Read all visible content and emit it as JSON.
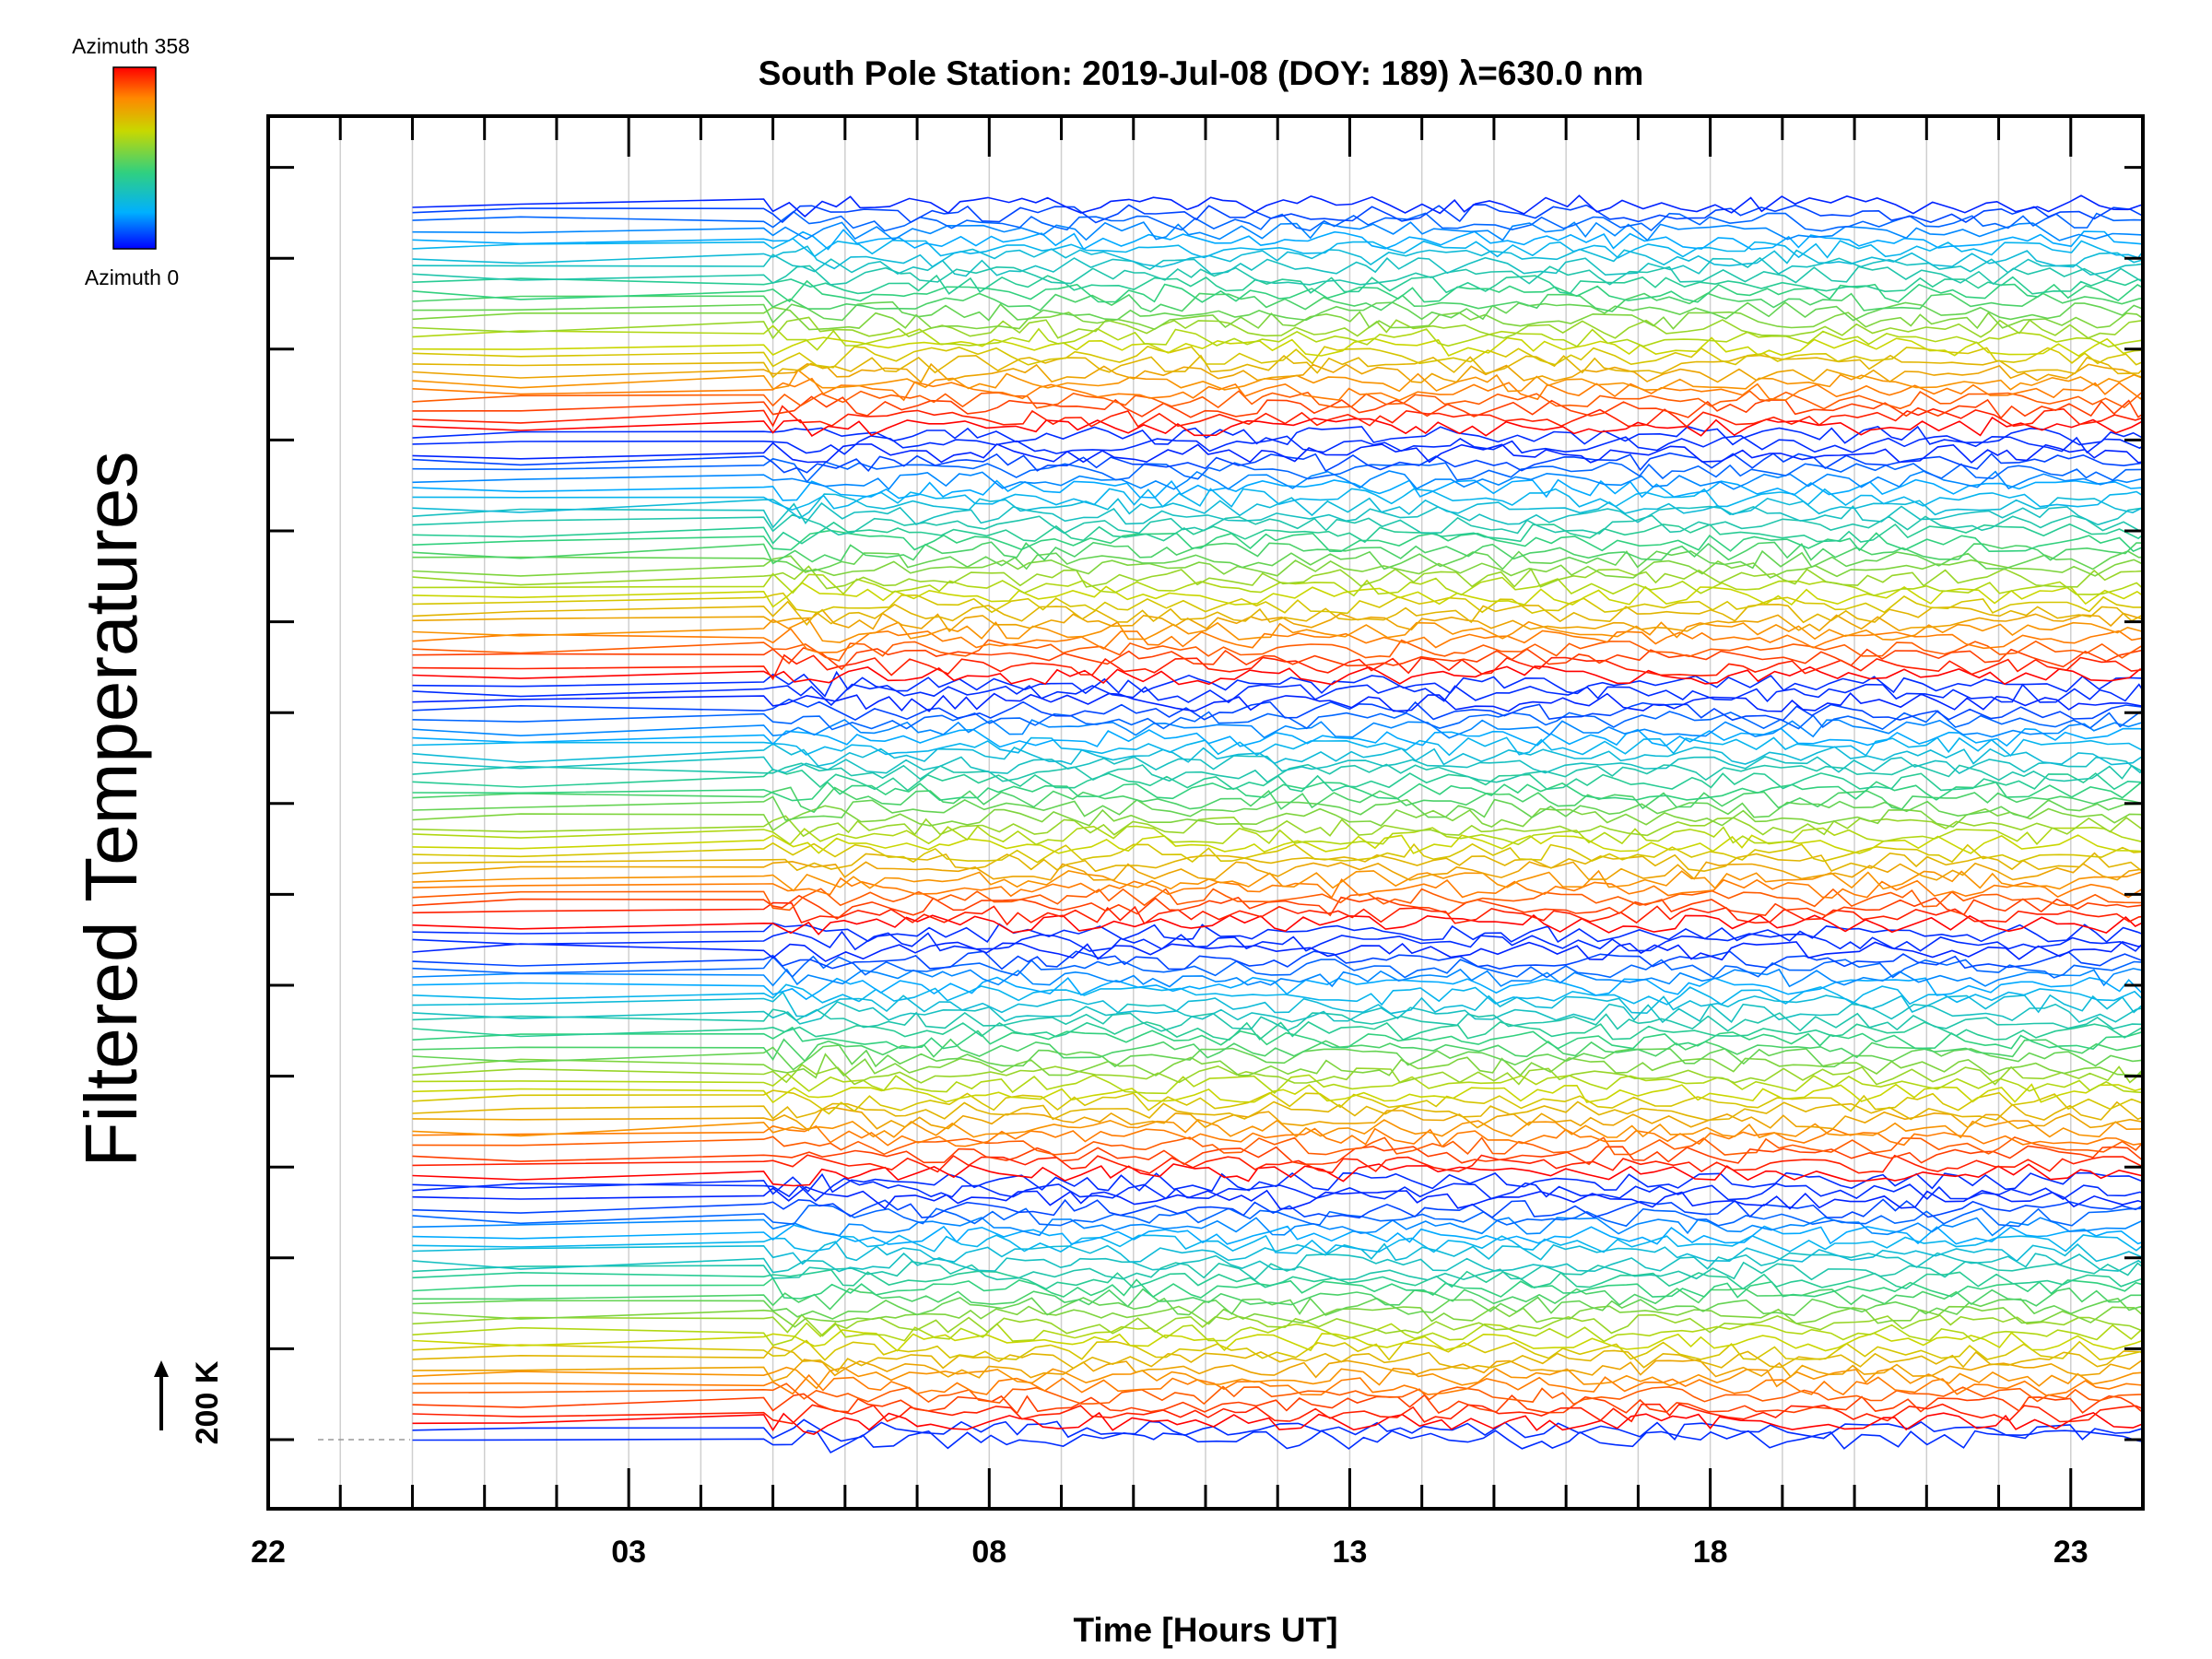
{
  "chart_data": {
    "type": "line",
    "title": "South Pole Station: 2019-Jul-08 (DOY: 189) λ=630.0 nm",
    "xlabel": "Time [Hours UT]",
    "ylabel": "Filtered Temperatures",
    "x_tick_labels": [
      "22",
      "03",
      "08",
      "13",
      "18",
      "23"
    ],
    "x_tick_values": [
      22,
      27,
      32,
      37,
      42,
      47
    ],
    "xlim": [
      22,
      48
    ],
    "data_start": 24,
    "burst_start": 29,
    "num_series": 140,
    "group_size": 28,
    "scale_label": "200 K",
    "scale_kelvin": 200,
    "colorbar": {
      "top_label": "Azimuth  358",
      "bottom_label": "Azimuth  0",
      "stops": [
        "#0000ff",
        "#00b0ff",
        "#30d080",
        "#c8d800",
        "#ff8800",
        "#ff0000"
      ]
    },
    "grid": true
  }
}
